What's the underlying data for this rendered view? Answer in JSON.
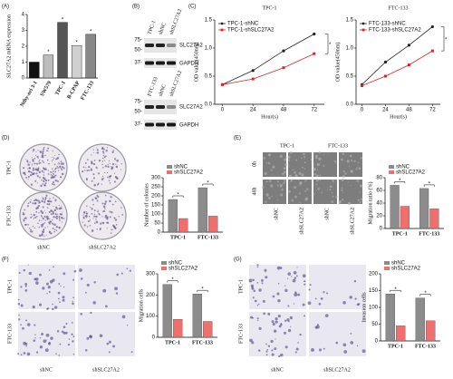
{
  "figure": {
    "panel_labels": [
      "(A)",
      "(B)",
      "(C)",
      "(D)",
      "(E)",
      "(F)",
      "(G)"
    ],
    "blots": [
      {
        "lanes": [
          "TPC-1",
          "shNC",
          "shSLC27A2"
        ],
        "markers": [
          "75-",
          "50-",
          "37-"
        ],
        "bands": [
          "SLC27A2",
          "GAPDH"
        ]
      },
      {
        "lanes": [
          "FTC-133",
          "shNC",
          "shSLC27A2"
        ],
        "markers": [
          "75-",
          "50-",
          "37-"
        ],
        "bands": [
          "SLC27A2",
          "GAPDH"
        ]
      }
    ],
    "colony": {
      "rows": [
        "TPC-1",
        "FTC-133"
      ],
      "columns": [
        "shNC",
        "shSLC27A2"
      ]
    },
    "wound": {
      "columns": [
        "TPC-1",
        "FTC-133"
      ],
      "rows": [
        "0h",
        "48h"
      ],
      "lanes": [
        "shNC",
        "shSLC27A2",
        "shNC",
        "shSLC27A2"
      ]
    },
    "migration": {
      "rows": [
        "TPC-1",
        "FTC-133"
      ],
      "columns": [
        "shNC",
        "shSLC27A2"
      ]
    },
    "invasion": {
      "rows": [
        "TPC-1",
        "FTC-133"
      ],
      "columns": [
        "shNC",
        "shSLC27A2"
      ]
    }
  },
  "chart_data": [
    {
      "type": "bar",
      "ylabel": "SLC27A2 mRNA expression",
      "categories": [
        "Nthy-ori 3-1",
        "SW579",
        "TPC-1",
        "B-CPAP",
        "FTC-133"
      ],
      "values": [
        1.0,
        1.45,
        3.5,
        2.05,
        2.75
      ],
      "colors": [
        "#111111",
        "#bdbdbd",
        "#555555",
        "#d0d0d0",
        "#888888"
      ],
      "ylim": [
        0,
        4
      ],
      "yticks": [
        0,
        1,
        2,
        3,
        4
      ],
      "annotations": [
        "*",
        "*",
        "*",
        "*"
      ]
    },
    {
      "type": "line",
      "title": "TPC-1",
      "ylabel": "OD value(450nm)",
      "xlabel": "Hour(s)",
      "x": [
        0,
        24,
        48,
        72
      ],
      "series": [
        {
          "name": "TPC-1-shNC",
          "color": "#222222",
          "values": [
            0.35,
            0.6,
            0.95,
            1.25
          ]
        },
        {
          "name": "TPC-1-shSLC27A2",
          "color": "#d62728",
          "values": [
            0.35,
            0.45,
            0.65,
            0.9
          ]
        }
      ],
      "xlim": [
        -6,
        80
      ],
      "xticks": [
        0,
        24,
        48,
        72
      ],
      "ylim": [
        0,
        1.5
      ],
      "yticks": [
        {
          "value": 0,
          "label": "0.0"
        },
        0.5,
        {
          "value": 1,
          "label": "1.0"
        },
        1.5
      ],
      "annotation": "*"
    },
    {
      "type": "line",
      "title": "FTC-133",
      "ylabel": "OD value(450nm)",
      "xlabel": "Hour(s)",
      "x": [
        0,
        24,
        48,
        72
      ],
      "series": [
        {
          "name": "FTC-133-shNC",
          "color": "#222222",
          "values": [
            0.35,
            0.75,
            1.05,
            1.38
          ]
        },
        {
          "name": "FTC-133-shSLC27A2",
          "color": "#d62728",
          "values": [
            0.33,
            0.5,
            0.7,
            0.95
          ]
        }
      ],
      "xlim": [
        -6,
        80
      ],
      "xticks": [
        0,
        24,
        48,
        72
      ],
      "ylim": [
        0,
        1.5
      ],
      "yticks": [
        {
          "value": 0,
          "label": "0.0"
        },
        0.5,
        {
          "value": 1,
          "label": "1.0"
        },
        1.5
      ],
      "annotation": "*"
    },
    {
      "type": "grouped_bar",
      "ylabel": "Number of colonies",
      "categories": [
        "TPC-1",
        "FTC-133"
      ],
      "series": [
        {
          "name": "shNC",
          "color": "#8c8c8c",
          "values": [
            180,
            245
          ]
        },
        {
          "name": "shSLC27A2",
          "color": "#ef6f6f",
          "values": [
            75,
            88
          ]
        }
      ],
      "ylim": [
        0,
        300
      ],
      "yticks": [
        0,
        50,
        100,
        150,
        200,
        250,
        300
      ],
      "annotations": [
        "*",
        "*"
      ]
    },
    {
      "type": "grouped_bar",
      "ylabel": "Migration ratio (%)",
      "categories": [
        "TPC-1",
        "FTC-133"
      ],
      "series": [
        {
          "name": "shNC",
          "color": "#8c8c8c",
          "values": [
            68,
            63
          ]
        },
        {
          "name": "shSLC27A2",
          "color": "#ef6f6f",
          "values": [
            35,
            31
          ]
        }
      ],
      "ylim": [
        0,
        80
      ],
      "yticks": [
        0,
        20,
        40,
        60,
        80
      ],
      "annotations": [
        "*",
        "*"
      ]
    },
    {
      "type": "grouped_bar",
      "ylabel": "Migration cells",
      "categories": [
        "TPC-1",
        "FTC-133"
      ],
      "series": [
        {
          "name": "shNC",
          "color": "#8c8c8c",
          "values": [
            250,
            205
          ]
        },
        {
          "name": "shSLC27A2",
          "color": "#ef6f6f",
          "values": [
            85,
            75
          ]
        }
      ],
      "ylim": [
        0,
        300
      ],
      "yticks": [
        0,
        100,
        200,
        300
      ],
      "annotations": [
        "*",
        "*"
      ]
    },
    {
      "type": "grouped_bar",
      "ylabel": "Invasion cells",
      "categories": [
        "TPC-1",
        "FTC-133"
      ],
      "series": [
        {
          "name": "shNC",
          "color": "#8c8c8c",
          "values": [
            140,
            128
          ]
        },
        {
          "name": "shSLC27A2",
          "color": "#ef6f6f",
          "values": [
            45,
            60
          ]
        }
      ],
      "ylim": [
        0,
        200
      ],
      "yticks": [
        0,
        50,
        100,
        150,
        200
      ],
      "annotations": [
        "*",
        "*"
      ]
    }
  ]
}
